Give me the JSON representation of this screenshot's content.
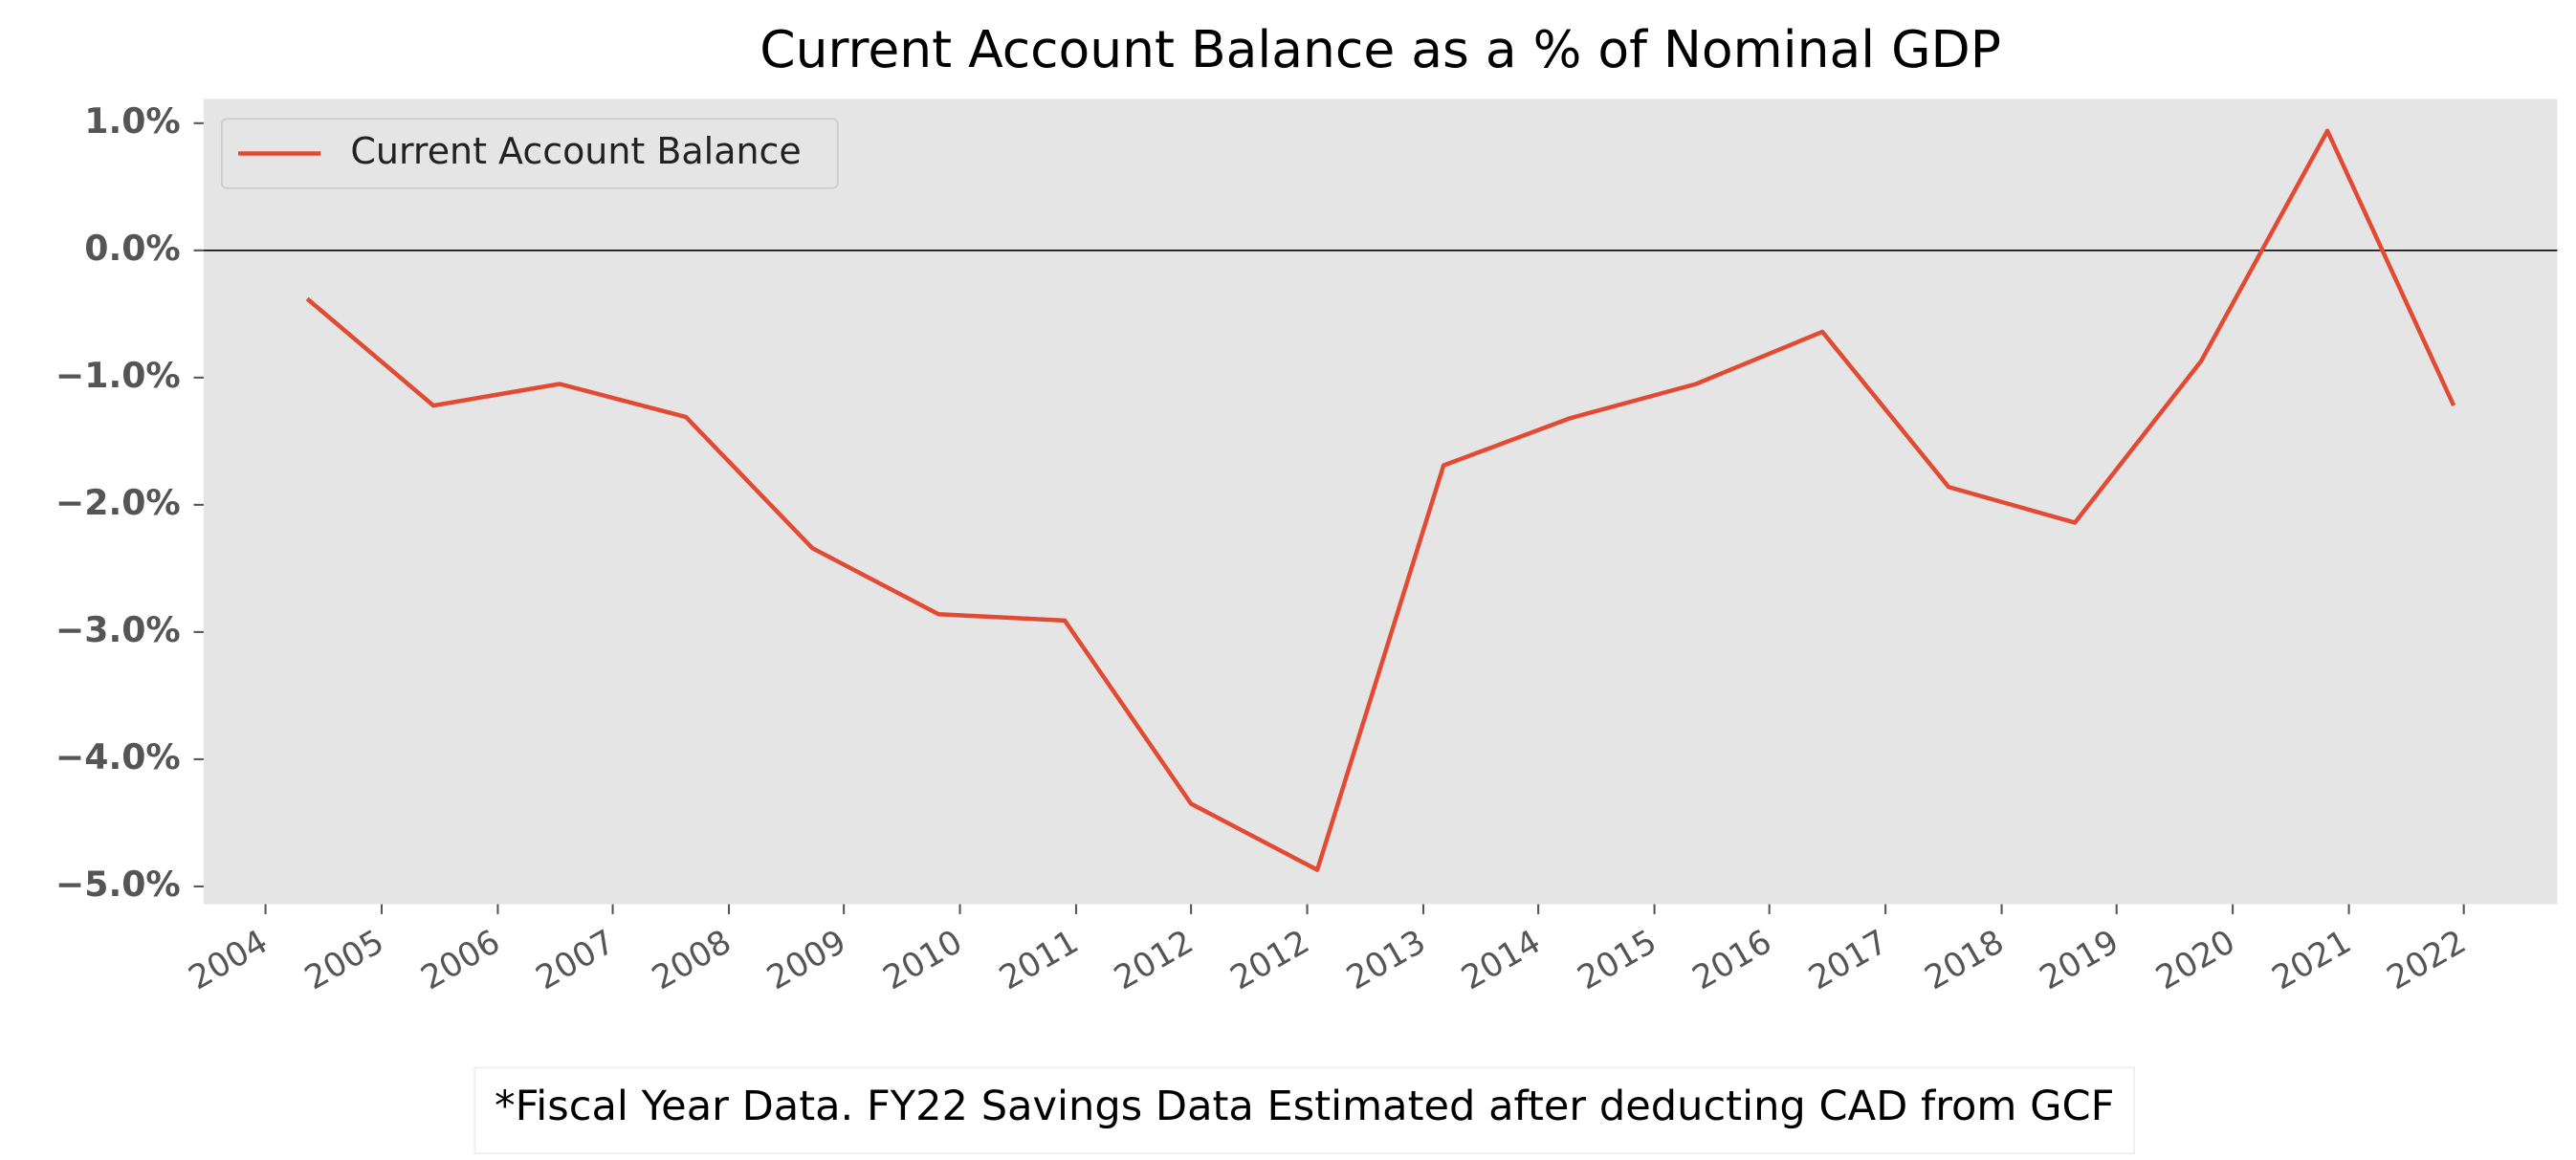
{
  "chart_data": {
    "type": "line",
    "title": "Current Account Balance as a % of Nominal GDP",
    "x": [
      2005,
      2006,
      2007,
      2008,
      2009,
      2010,
      2011,
      2012,
      2013,
      2014,
      2015,
      2016,
      2017,
      2018,
      2019,
      2020,
      2021,
      2022
    ],
    "series": [
      {
        "name": "Current Account Balance",
        "color": "#e24a33",
        "values": [
          -0.38,
          -1.22,
          -1.05,
          -1.31,
          -2.34,
          -2.86,
          -2.91,
          -4.35,
          -4.87,
          -1.69,
          -1.32,
          -1.05,
          -0.64,
          -1.86,
          -2.14,
          -0.87,
          0.94,
          -1.22
        ]
      }
    ],
    "xlim": [
      2004.18,
      2022.82
    ],
    "xticks": [
      {
        "value": 2004.67,
        "label": "2004"
      },
      {
        "value": 2005.59,
        "label": "2005"
      },
      {
        "value": 2006.51,
        "label": "2006"
      },
      {
        "value": 2007.42,
        "label": "2007"
      },
      {
        "value": 2008.34,
        "label": "2008"
      },
      {
        "value": 2009.25,
        "label": "2009"
      },
      {
        "value": 2010.17,
        "label": "2010"
      },
      {
        "value": 2011.09,
        "label": "2011"
      },
      {
        "value": 2012.0,
        "label": "2012"
      },
      {
        "value": 2012.92,
        "label": "2012"
      },
      {
        "value": 2013.84,
        "label": "2013"
      },
      {
        "value": 2014.75,
        "label": "2014"
      },
      {
        "value": 2015.67,
        "label": "2015"
      },
      {
        "value": 2016.58,
        "label": "2016"
      },
      {
        "value": 2017.5,
        "label": "2017"
      },
      {
        "value": 2018.42,
        "label": "2018"
      },
      {
        "value": 2019.33,
        "label": "2019"
      },
      {
        "value": 2020.25,
        "label": "2020"
      },
      {
        "value": 2021.17,
        "label": "2021"
      },
      {
        "value": 2022.08,
        "label": "2022"
      }
    ],
    "ylim": [
      -5.14,
      1.19
    ],
    "yticks": [
      {
        "value": 1,
        "label": "1.0%"
      },
      {
        "value": 0,
        "label": "0.0%"
      },
      {
        "value": -1,
        "label": "−1.0%"
      },
      {
        "value": -2,
        "label": "−2.0%"
      },
      {
        "value": -3,
        "label": "−3.0%"
      },
      {
        "value": -4,
        "label": "−4.0%"
      },
      {
        "value": -5,
        "label": "−5.0%"
      }
    ],
    "grid": false,
    "legend": "upper-left",
    "annotation": "*Fiscal Year Data. FY22 Savings Data Estimated after deducting CAD from GCF"
  }
}
